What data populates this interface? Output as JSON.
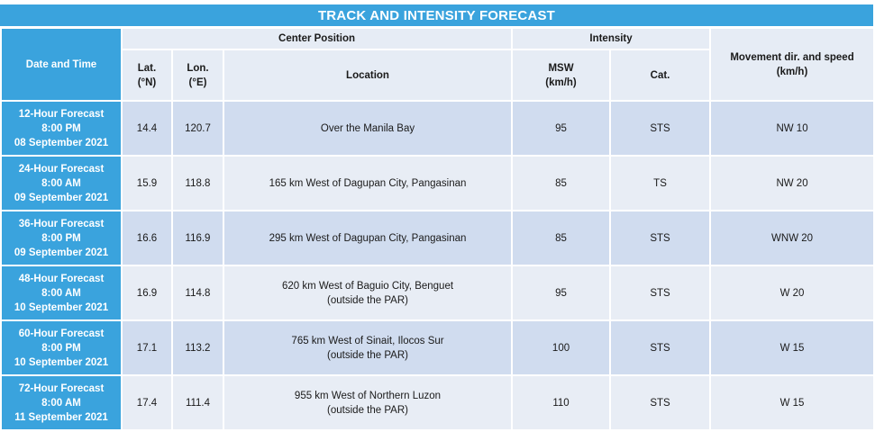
{
  "title": "TRACK AND INTENSITY FORECAST",
  "headers": {
    "date_time": "Date and Time",
    "center_position": "Center Position",
    "intensity": "Intensity",
    "movement": [
      "Movement dir. and speed",
      "(km/h)"
    ],
    "lat": [
      "Lat.",
      "(°N)"
    ],
    "lon": [
      "Lon.",
      "(°E)"
    ],
    "location": "Location",
    "msw": [
      "MSW",
      "(km/h)"
    ],
    "cat": "Cat."
  },
  "rows": [
    {
      "period": "12-Hour Forecast",
      "time": "8:00 PM",
      "date": "08 September 2021",
      "lat": "14.4",
      "lon": "120.7",
      "location": [
        "Over the Manila Bay",
        ""
      ],
      "msw": "95",
      "cat": "STS",
      "movement": "NW 10"
    },
    {
      "period": "24-Hour Forecast",
      "time": "8:00 AM",
      "date": "09 September 2021",
      "lat": "15.9",
      "lon": "118.8",
      "location": [
        "165 km West of Dagupan City, Pangasinan",
        ""
      ],
      "msw": "85",
      "cat": "TS",
      "movement": "NW 20"
    },
    {
      "period": "36-Hour Forecast",
      "time": "8:00 PM",
      "date": "09 September 2021",
      "lat": "16.6",
      "lon": "116.9",
      "location": [
        "295 km West of Dagupan City, Pangasinan",
        ""
      ],
      "msw": "85",
      "cat": "STS",
      "movement": "WNW 20"
    },
    {
      "period": "48-Hour Forecast",
      "time": "8:00 AM",
      "date": "10 September 2021",
      "lat": "16.9",
      "lon": "114.8",
      "location": [
        "620 km West of Baguio City, Benguet",
        "(outside the PAR)"
      ],
      "msw": "95",
      "cat": "STS",
      "movement": "W 20"
    },
    {
      "period": "60-Hour Forecast",
      "time": "8:00 PM",
      "date": "10 September 2021",
      "lat": "17.1",
      "lon": "113.2",
      "location": [
        "765 km West of Sinait, Ilocos Sur",
        "(outside the PAR)"
      ],
      "msw": "100",
      "cat": "STS",
      "movement": "W 15"
    },
    {
      "period": "72-Hour Forecast",
      "time": "8:00 AM",
      "date": "11 September 2021",
      "lat": "17.4",
      "lon": "111.4",
      "location": [
        "955 km West of Northern Luzon",
        "(outside the PAR)"
      ],
      "msw": "110",
      "cat": "STS",
      "movement": "W 15"
    }
  ]
}
